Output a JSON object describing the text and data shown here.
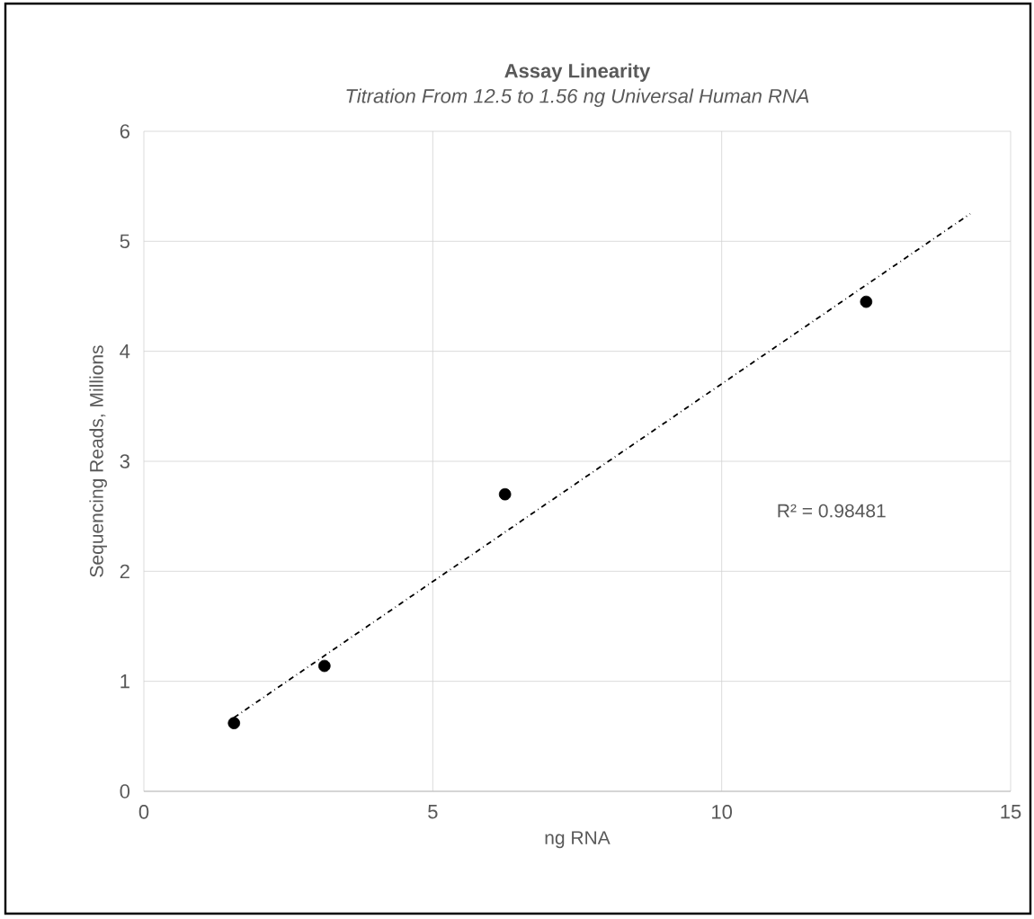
{
  "chart_data": {
    "type": "scatter",
    "title": "Assay Linearity",
    "subtitle": "Titration From 12.5 to 1.56 ng Universal Human RNA",
    "xlabel": "ng RNA",
    "ylabel": "Sequencing Reads, Millions",
    "annotations": [
      "R² = 0.98481"
    ],
    "series": [
      {
        "color": "#000000",
        "marker": "circle",
        "x": [
          1.56,
          3.125,
          6.25,
          12.5
        ],
        "values": [
          0.62,
          1.14,
          2.7,
          4.45
        ]
      },
      {
        "type": "line",
        "color": "#000000",
        "marker": "none",
        "line_style": "dashed",
        "x": [
          1.56,
          14.3
        ],
        "values": [
          0.67,
          5.25
        ]
      }
    ],
    "xlim": [
      0,
      15
    ],
    "ylim": [
      0,
      6
    ],
    "xticks": [
      0,
      5,
      10,
      15
    ],
    "yticks": [
      0,
      1,
      2,
      3,
      4,
      5,
      6
    ],
    "grid": true
  }
}
